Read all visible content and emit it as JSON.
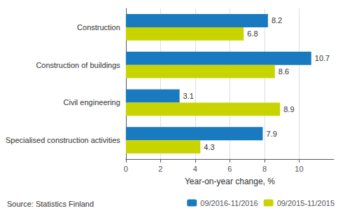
{
  "chart_data": {
    "type": "bar",
    "orientation": "horizontal",
    "categories": [
      "Construction",
      "Construction of buildings",
      "Civil engineering",
      "Specialised construction activities"
    ],
    "series": [
      {
        "name": "09/2016-11/2016",
        "color": "#1a7abf",
        "values": [
          8.2,
          10.7,
          3.1,
          7.9
        ]
      },
      {
        "name": "09/2015-11/2015",
        "color": "#c8d400",
        "values": [
          6.8,
          8.6,
          8.9,
          4.3
        ]
      }
    ],
    "xlabel": "Year-on-year change, %",
    "xlim": [
      0,
      12
    ],
    "xticks": [
      0,
      2,
      4,
      6,
      8,
      10
    ],
    "grid": true,
    "legend": "lower right",
    "data_labels": true,
    "annotations": [
      "Source: Statistics Finland"
    ]
  }
}
